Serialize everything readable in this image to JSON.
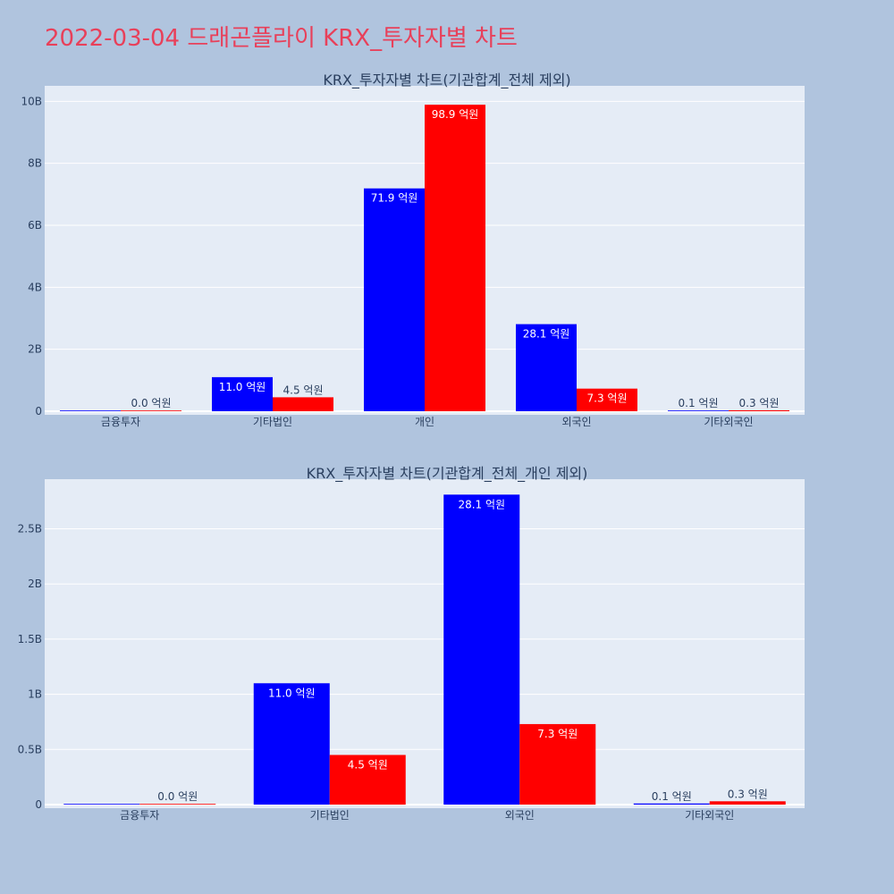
{
  "title": "2022-03-04 드래곤플라이 KRX_투자자별 차트",
  "colors": {
    "buy": "#0000ff",
    "sell": "#ff0000"
  },
  "chart_data": [
    {
      "type": "bar",
      "title": "KRX_투자자별 차트(기관합계_전체 제외)",
      "categories": [
        "금융투자",
        "기타법인",
        "개인",
        "외국인",
        "기타외국인"
      ],
      "series": [
        {
          "values": [
            0.0,
            1.1,
            7.19,
            2.81,
            0.01
          ],
          "labels": [
            "",
            "11.0 억원",
            "71.9 억원",
            "28.1 억원",
            "0.1 억원"
          ]
        },
        {
          "values": [
            0.0,
            0.45,
            9.89,
            0.73,
            0.03
          ],
          "labels": [
            "0.0 억원",
            "4.5 억원",
            "98.9 억원",
            "7.3 억원",
            "0.3 억원"
          ]
        }
      ],
      "value_unit": "B",
      "ylim": [
        0,
        10.5
      ],
      "yticks": [
        0,
        2,
        4,
        6,
        8,
        10
      ],
      "ytick_labels": [
        "0",
        "2B",
        "4B",
        "6B",
        "8B",
        "10B"
      ],
      "grid": true
    },
    {
      "type": "bar",
      "title": "KRX_투자자별 차트(기관합계_전체_개인 제외)",
      "categories": [
        "금융투자",
        "기타법인",
        "외국인",
        "기타외국인"
      ],
      "series": [
        {
          "values": [
            0.0,
            1.1,
            2.81,
            0.01
          ],
          "labels": [
            "",
            "11.0 억원",
            "28.1 억원",
            "0.1 억원"
          ]
        },
        {
          "values": [
            0.0,
            0.45,
            0.73,
            0.03
          ],
          "labels": [
            "0.0 억원",
            "4.5 억원",
            "7.3 억원",
            "0.3 억원"
          ]
        }
      ],
      "value_unit": "B",
      "ylim": [
        0,
        2.95
      ],
      "yticks": [
        0,
        0.5,
        1,
        1.5,
        2,
        2.5
      ],
      "ytick_labels": [
        "0",
        "0.5B",
        "1B",
        "1.5B",
        "2B",
        "2.5B"
      ],
      "grid": true
    }
  ]
}
